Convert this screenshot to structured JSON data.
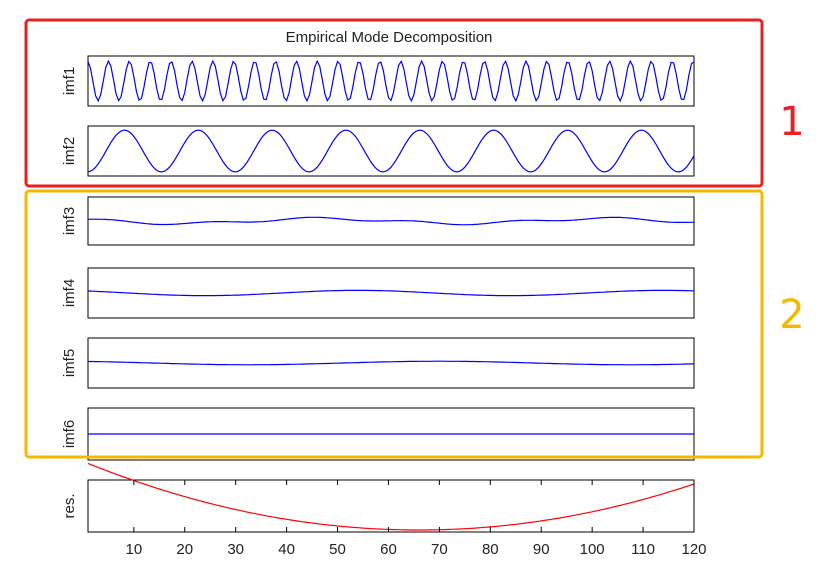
{
  "chart_data": {
    "type": "line",
    "title": "Empirical Mode Decomposition",
    "x_range": [
      1,
      120
    ],
    "x_ticks": [
      10,
      20,
      30,
      40,
      50,
      60,
      70,
      80,
      90,
      100,
      110,
      120
    ],
    "panels": [
      {
        "label": "imf1",
        "color": "#0000ff",
        "ylim": [
          -1,
          1
        ],
        "description": "high-frequency oscillation, ~30 cycles over 120 samples, amplitude ~1"
      },
      {
        "label": "imf2",
        "color": "#0000ff",
        "ylim": [
          -1,
          1
        ],
        "description": "oscillation with period ~14.5 samples, amplitude ~1"
      },
      {
        "label": "imf3",
        "color": "#0000ff",
        "ylim": [
          -1,
          1
        ],
        "description": "small slow oscillation near zero"
      },
      {
        "label": "imf4",
        "color": "#0000ff",
        "ylim": [
          -1,
          1
        ],
        "description": "small slow oscillation near zero"
      },
      {
        "label": "imf5",
        "color": "#0000ff",
        "ylim": [
          -1,
          1
        ],
        "description": "very small slow oscillation near zero"
      },
      {
        "label": "imf6",
        "color": "#0000ff",
        "ylim": [
          -1,
          1
        ],
        "description": "flat line at zero"
      },
      {
        "label": "res.",
        "color": "#ff0000",
        "description": "U-shaped residual trend, minimum near x=65"
      }
    ],
    "grid": false
  },
  "groups": [
    {
      "label": "1",
      "color": "#e8201f"
    },
    {
      "label": "2",
      "color": "#f5b800"
    }
  ]
}
